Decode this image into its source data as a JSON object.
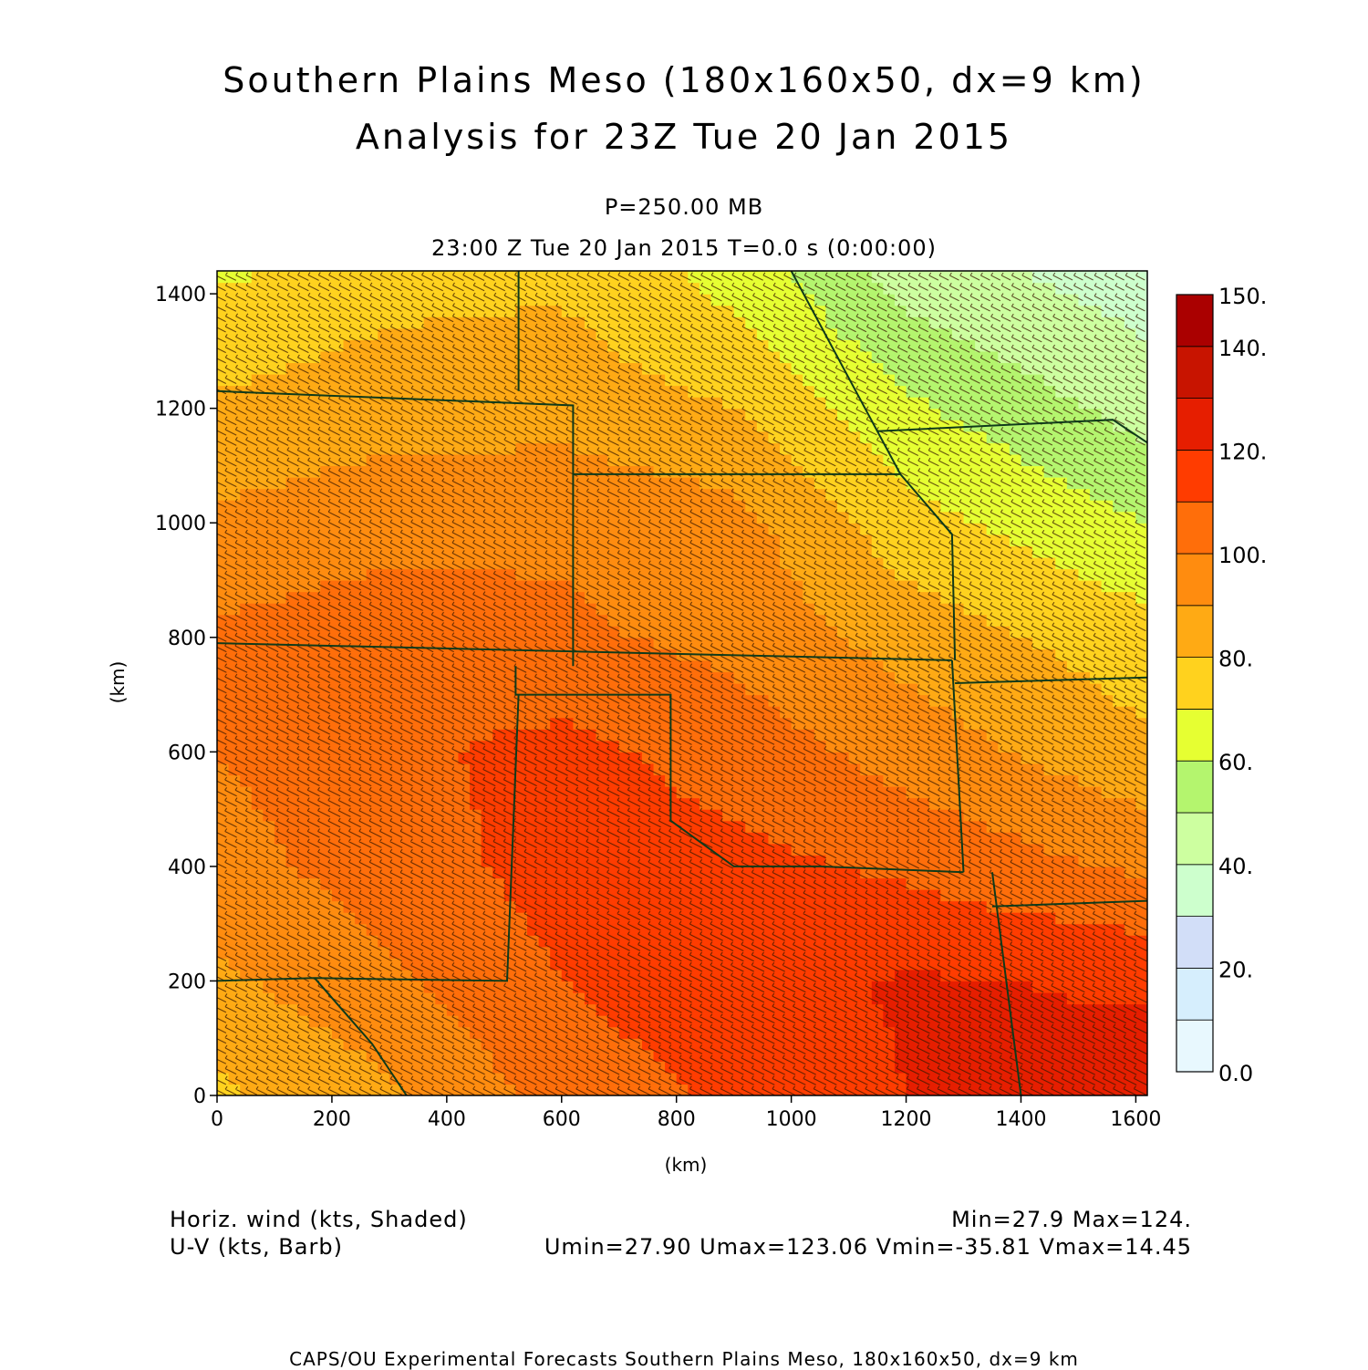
{
  "header": {
    "title_line1": "Southern Plains Meso (180x160x50, dx=9 km)",
    "title_line2": "Analysis for 23Z Tue 20 Jan 2015",
    "level": "P=250.00 MB",
    "time": "23:00 Z Tue 20 Jan 2015    T=0.0 s (0:00:00)"
  },
  "footer": {
    "field1": "Horiz. wind (kts, Shaded)",
    "field2": "U-V (kts, Barb)",
    "minmax": "Min=27.9 Max=124.",
    "uv_stats": "Umin=27.90 Umax=123.06 Vmin=-35.81 Vmax=14.45",
    "credit": "CAPS/OU Experimental Forecasts  Southern Plains Meso, 180x160x50, dx=9 km"
  },
  "chart_data": {
    "type": "heatmap",
    "xlabel": "(km)",
    "ylabel": "(km)",
    "xlim": [
      0,
      1620
    ],
    "ylim": [
      0,
      1440
    ],
    "xticks": [
      "0",
      "200",
      "400",
      "600",
      "800",
      "1000",
      "1200",
      "1400",
      "1600"
    ],
    "yticks": [
      "0",
      "200",
      "400",
      "600",
      "800",
      "1000",
      "1200",
      "1400"
    ],
    "colorbar": {
      "labels": [
        "0.0",
        "20.",
        "40.",
        "60.",
        "80.",
        "100.",
        "120.",
        "140.",
        "150."
      ],
      "bins": [
        {
          "lo": 0,
          "hi": 10,
          "color": "#e8f8fe"
        },
        {
          "lo": 10,
          "hi": 20,
          "color": "#d6eefd"
        },
        {
          "lo": 20,
          "hi": 30,
          "color": "#d2def8"
        },
        {
          "lo": 30,
          "hi": 40,
          "color": "#cdffcd"
        },
        {
          "lo": 40,
          "hi": 50,
          "color": "#cdffa0"
        },
        {
          "lo": 50,
          "hi": 60,
          "color": "#b4f56e"
        },
        {
          "lo": 60,
          "hi": 70,
          "color": "#e6ff32"
        },
        {
          "lo": 70,
          "hi": 80,
          "color": "#ffd21e"
        },
        {
          "lo": 80,
          "hi": 90,
          "color": "#ffaa14"
        },
        {
          "lo": 90,
          "hi": 100,
          "color": "#ff8c0f"
        },
        {
          "lo": 100,
          "hi": 110,
          "color": "#ff6e0a"
        },
        {
          "lo": 110,
          "hi": 120,
          "color": "#ff3c00"
        },
        {
          "lo": 120,
          "hi": 130,
          "color": "#e61e00"
        },
        {
          "lo": 130,
          "hi": 140,
          "color": "#c81400"
        },
        {
          "lo": 140,
          "hi": 150,
          "color": "#aa0000"
        }
      ]
    },
    "field": {
      "name": "Horiz. wind",
      "units": "kts",
      "min": 27.9,
      "max": 124,
      "grid_x_km": [
        0,
        300,
        600,
        900,
        1200,
        1620
      ],
      "grid_y_km": [
        0,
        200,
        400,
        600,
        800,
        1000,
        1200,
        1440
      ],
      "values_rows_from_bottom": [
        [
          78,
          88,
          104,
          112,
          120,
          123
        ],
        [
          88,
          98,
          110,
          117,
          121,
          119
        ],
        [
          96,
          105,
          114,
          113,
          108,
          98
        ],
        [
          100,
          108,
          113,
          106,
          96,
          82
        ],
        [
          102,
          106,
          102,
          97,
          86,
          74
        ],
        [
          92,
          96,
          98,
          94,
          74,
          60
        ],
        [
          82,
          86,
          86,
          80,
          62,
          46
        ],
        [
          68,
          76,
          78,
          66,
          45,
          34
        ]
      ]
    },
    "boundaries_km": [
      [
        [
          0,
          1230
        ],
        [
          620,
          1205
        ],
        [
          620,
          750
        ]
      ],
      [
        [
          525,
          1440
        ],
        [
          525,
          1230
        ]
      ],
      [
        [
          620,
          1085
        ],
        [
          1190,
          1085
        ]
      ],
      [
        [
          0,
          790
        ],
        [
          1280,
          760
        ]
      ],
      [
        [
          520,
          750
        ],
        [
          520,
          700
        ],
        [
          790,
          700
        ],
        [
          790,
          480
        ],
        [
          900,
          400
        ],
        [
          1050,
          400
        ],
        [
          1300,
          390
        ]
      ],
      [
        [
          525,
          700
        ],
        [
          505,
          200
        ],
        [
          170,
          205
        ],
        [
          0,
          200
        ]
      ],
      [
        [
          170,
          205
        ],
        [
          270,
          90
        ],
        [
          330,
          0
        ]
      ],
      [
        [
          1350,
          390
        ],
        [
          1400,
          0
        ]
      ],
      [
        [
          1350,
          330
        ],
        [
          1620,
          340
        ]
      ],
      [
        [
          1280,
          760
        ],
        [
          1300,
          390
        ]
      ],
      [
        [
          1285,
          720
        ],
        [
          1620,
          730
        ]
      ],
      [
        [
          1150,
          1160
        ],
        [
          1560,
          1180
        ],
        [
          1620,
          1140
        ]
      ],
      [
        [
          1000,
          1440
        ],
        [
          1190,
          1085
        ],
        [
          1280,
          980
        ],
        [
          1285,
          760
        ]
      ]
    ]
  }
}
